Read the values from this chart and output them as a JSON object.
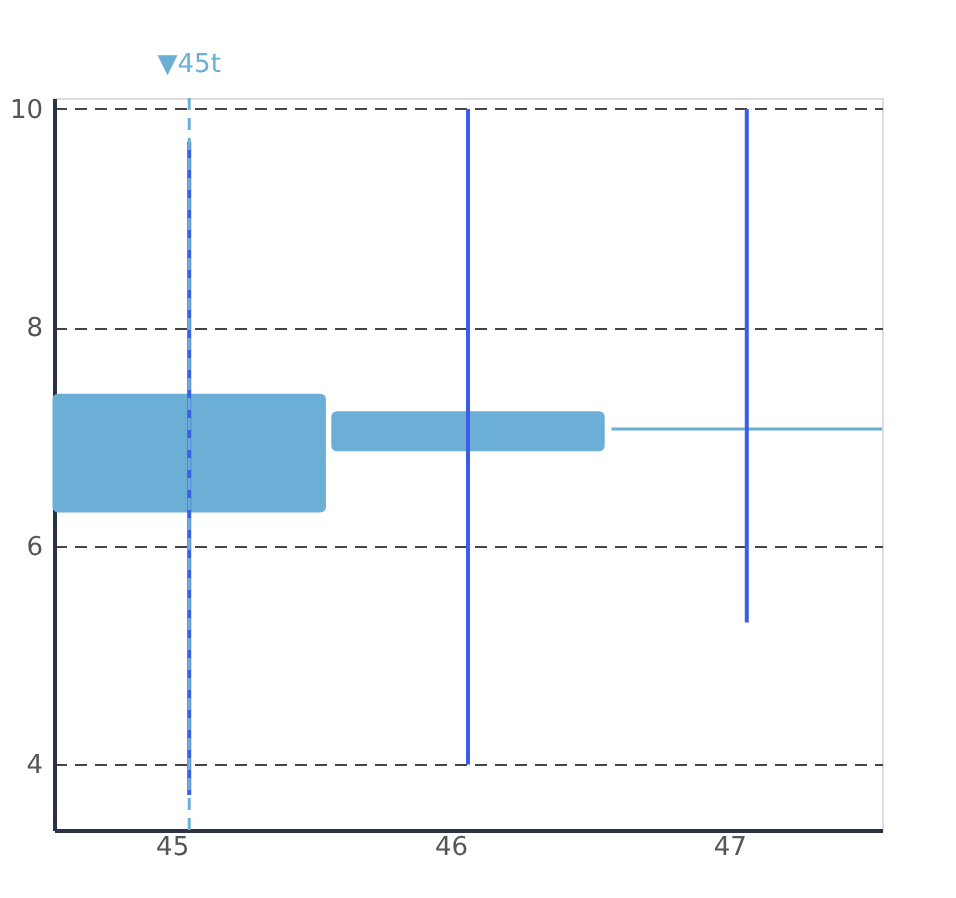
{
  "chart_data": {
    "type": "candlestick",
    "categories": [
      "45",
      "46",
      "47"
    ],
    "ohlc": [
      [
        6.32,
        9.7,
        3.72,
        7.38
      ],
      [
        6.88,
        10,
        4,
        7.22
      ],
      [
        7.07,
        10,
        5.3,
        7.07
      ]
    ],
    "color": "#6baed6",
    "ylim": [
      3.4,
      10.1
    ],
    "yticks": [
      4,
      6,
      8,
      10
    ],
    "grid": "y",
    "ref_lines": [
      {
        "axis": "x",
        "value": "45",
        "label": "▼45t",
        "color": "#6baed6",
        "line_style": "dashed"
      }
    ]
  }
}
